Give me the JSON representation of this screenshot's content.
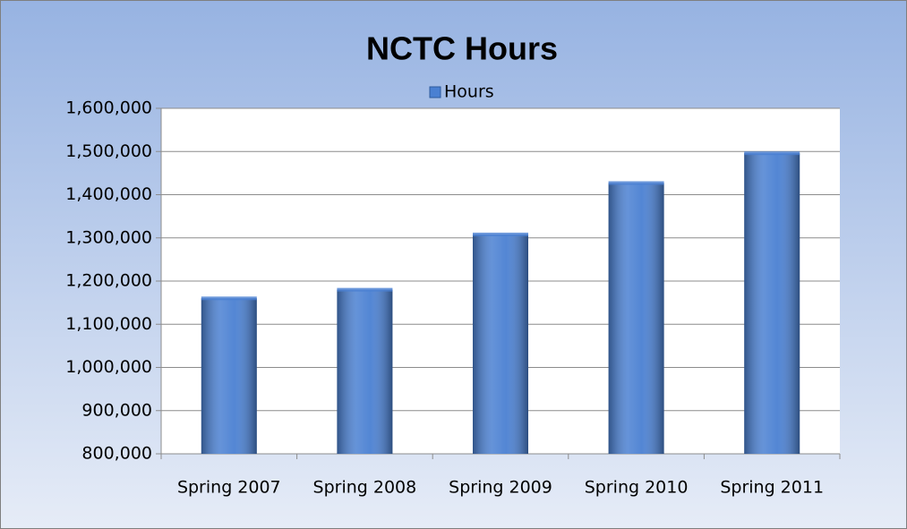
{
  "chart_data": {
    "type": "bar",
    "title": "NCTC Hours",
    "categories": [
      "Spring 2007",
      "Spring 2008",
      "Spring 2009",
      "Spring 2010",
      "Spring 2011"
    ],
    "series": [
      {
        "name": "Hours",
        "color": "#4a80d2",
        "values": [
          1160000,
          1180000,
          1308000,
          1427000,
          1496000
        ]
      }
    ],
    "ylim": [
      800000,
      1600000
    ],
    "yticks": [
      {
        "value": 800000,
        "label": "800,000"
      },
      {
        "value": 900000,
        "label": "900,000"
      },
      {
        "value": 1000000,
        "label": "1,000,000"
      },
      {
        "value": 1100000,
        "label": "1,100,000"
      },
      {
        "value": 1200000,
        "label": "1,200,000"
      },
      {
        "value": 1300000,
        "label": "1,300,000"
      },
      {
        "value": 1400000,
        "label": "1,400,000"
      },
      {
        "value": 1500000,
        "label": "1,500,000"
      },
      {
        "value": 1600000,
        "label": "1,600,000"
      }
    ],
    "grid": true,
    "legend": "top"
  }
}
